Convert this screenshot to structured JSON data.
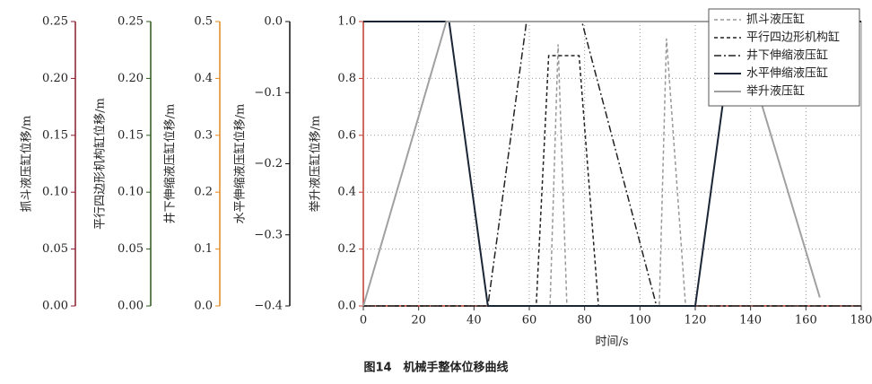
{
  "chart_data": {
    "type": "line",
    "xlabel": "时间/s",
    "xlim": [
      0,
      180
    ],
    "xticks": [
      0,
      20,
      40,
      60,
      80,
      100,
      120,
      140,
      160,
      180
    ],
    "grid": true,
    "legend": "upper right",
    "y_axes": [
      {
        "label": "抓斗液压缸位移/m",
        "ylim": [
          0,
          0.25
        ],
        "color": "#8b1a2b",
        "yticks": [
          {
            "value": 0,
            "label": "0.00"
          },
          0.05,
          {
            "value": 0.1,
            "label": "0.10"
          },
          0.15,
          {
            "value": 0.2,
            "label": "0.20"
          },
          0.25
        ]
      },
      {
        "label": "平行四边形机构缸位移/m",
        "ylim": [
          0,
          0.25
        ],
        "color": "#2d5a1b",
        "yticks": [
          {
            "value": 0,
            "label": "0.00"
          },
          0.05,
          {
            "value": 0.1,
            "label": "0.10"
          },
          0.15,
          {
            "value": 0.2,
            "label": "0.20"
          },
          0.25
        ]
      },
      {
        "label": "井下伸缩液压缸位移/m",
        "ylim": [
          0,
          0.5
        ],
        "color": "#e08a1e",
        "yticks": [
          {
            "value": 0,
            "label": "0.0"
          },
          0.1,
          0.2,
          0.3,
          0.4,
          0.5
        ]
      },
      {
        "label": "水平伸缩液压缸位移/m",
        "ylim": [
          -0.4,
          0
        ],
        "color": "#111111",
        "yticks": [
          {
            "value": -0.4,
            "label": "−0.4"
          },
          {
            "value": -0.3,
            "label": "−0.3"
          },
          {
            "value": -0.2,
            "label": "−0.2"
          },
          {
            "value": -0.1,
            "label": "−0.1"
          },
          {
            "value": 0,
            "label": "0.0"
          }
        ]
      },
      {
        "label": "举升液压缸位移/m",
        "ylim": [
          0,
          1
        ],
        "color": "#c0392b",
        "yticks": [
          {
            "value": 0,
            "label": "0.0"
          },
          0.2,
          0.4,
          0.6,
          0.8,
          {
            "value": 1,
            "label": "1.0"
          }
        ]
      }
    ],
    "series": [
      {
        "name": "抓斗液压缸",
        "color": "#999999",
        "dash": "4,3",
        "axis": 0,
        "x": [
          0,
          67.5,
          70.4,
          73.6,
          107,
          109.6,
          116.5,
          180
        ],
        "values": [
          0,
          0,
          0.23,
          0,
          0,
          0.235,
          0,
          0
        ]
      },
      {
        "name": "平行四边形机构缸",
        "color": "#222222",
        "dash": "4,3",
        "axis": 1,
        "x": [
          0,
          62.5,
          67,
          78,
          85,
          180
        ],
        "values": [
          0,
          0,
          0.22,
          0.22,
          0,
          0
        ]
      },
      {
        "name": "井下伸缩液压缸",
        "color": "#222222",
        "dash": "8,3,2,3",
        "axis": 2,
        "x": [
          0,
          45,
          59,
          79,
          106,
          180
        ],
        "values": [
          0,
          0,
          0.5,
          0.5,
          0,
          0
        ]
      },
      {
        "name": "水平伸缩液压缸",
        "color": "#1a2535",
        "dash": "none",
        "axis": 3,
        "x": [
          0,
          31,
          45,
          120,
          134,
          180
        ],
        "values": [
          0,
          0,
          -0.4,
          -0.4,
          0,
          0
        ]
      },
      {
        "name": "举升液压缸",
        "color": "#a0a0a0",
        "dash": "none",
        "axis": 4,
        "x": [
          0,
          30,
          135,
          165
        ],
        "values": [
          0,
          1,
          1,
          0.03
        ]
      }
    ]
  },
  "caption": "图14　机械手整体位移曲线"
}
